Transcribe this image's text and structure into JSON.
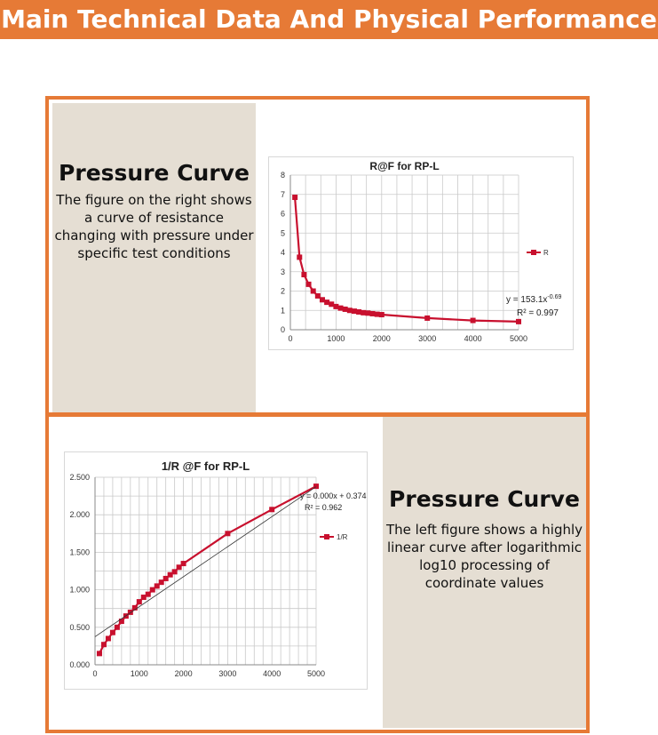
{
  "header": {
    "title": "Main Technical Data And Physical Performance"
  },
  "top_section": {
    "title": "Pressure Curve",
    "description": "The figure on the right shows a curve of resistance changing with pressure under specific test conditions"
  },
  "bottom_section": {
    "title": "Pressure Curve",
    "description": "The left figure shows a highly linear curve after logarithmic log10 processing of coordinate values"
  },
  "colors": {
    "accent": "#e67a36",
    "panel": "#e5ded3",
    "series": "#c8102e",
    "grid": "#c9c9c9"
  },
  "chart_data": [
    {
      "type": "line",
      "title": "R@F  for RP-L",
      "xlabel": "",
      "ylabel": "",
      "xlim": [
        0,
        5000
      ],
      "ylim": [
        0,
        8
      ],
      "xticks": [
        "0",
        "1000",
        "2000",
        "3000",
        "4000",
        "5000"
      ],
      "yticks": [
        "0",
        "1",
        "2",
        "3",
        "4",
        "5",
        "6",
        "7",
        "8"
      ],
      "grid": true,
      "legend_position": "right",
      "series": [
        {
          "name": "R",
          "x": [
            100,
            200,
            300,
            400,
            500,
            600,
            700,
            800,
            900,
            1000,
            1100,
            1200,
            1300,
            1400,
            1500,
            1600,
            1700,
            1800,
            1900,
            2000,
            3000,
            4000,
            5000
          ],
          "y": [
            6.85,
            3.75,
            2.85,
            2.35,
            2.0,
            1.75,
            1.55,
            1.42,
            1.32,
            1.2,
            1.12,
            1.06,
            1.0,
            0.96,
            0.92,
            0.88,
            0.86,
            0.83,
            0.8,
            0.78,
            0.6,
            0.48,
            0.42
          ]
        }
      ],
      "annotations": {
        "equation": "y = 153.1x",
        "exponent": "-0.69",
        "r2": "R² = 0.997"
      }
    },
    {
      "type": "line",
      "title": "1/R @F for RP-L",
      "xlabel": "",
      "ylabel": "",
      "xlim": [
        0,
        5000
      ],
      "ylim": [
        0,
        2.5
      ],
      "xticks": [
        "0",
        "1000",
        "2000",
        "3000",
        "4000",
        "5000"
      ],
      "yticks": [
        "0.000",
        "0.500",
        "1.000",
        "1.500",
        "2.000",
        "2.500"
      ],
      "grid": true,
      "legend_position": "right",
      "series": [
        {
          "name": "1/R",
          "x": [
            100,
            200,
            300,
            400,
            500,
            600,
            700,
            800,
            900,
            1000,
            1100,
            1200,
            1300,
            1400,
            1500,
            1600,
            1700,
            1800,
            1900,
            2000,
            3000,
            4000,
            5000
          ],
          "y": [
            0.15,
            0.27,
            0.35,
            0.43,
            0.5,
            0.58,
            0.65,
            0.7,
            0.76,
            0.84,
            0.9,
            0.94,
            1.0,
            1.05,
            1.1,
            1.15,
            1.2,
            1.24,
            1.3,
            1.35,
            1.75,
            2.07,
            2.38
          ]
        },
        {
          "name": "",
          "x": [
            0,
            5000
          ],
          "y": [
            0.374,
            2.374
          ]
        }
      ],
      "annotations": {
        "equation": "y = 0.000x + 0.374",
        "r2": "R² = 0.962"
      }
    }
  ]
}
